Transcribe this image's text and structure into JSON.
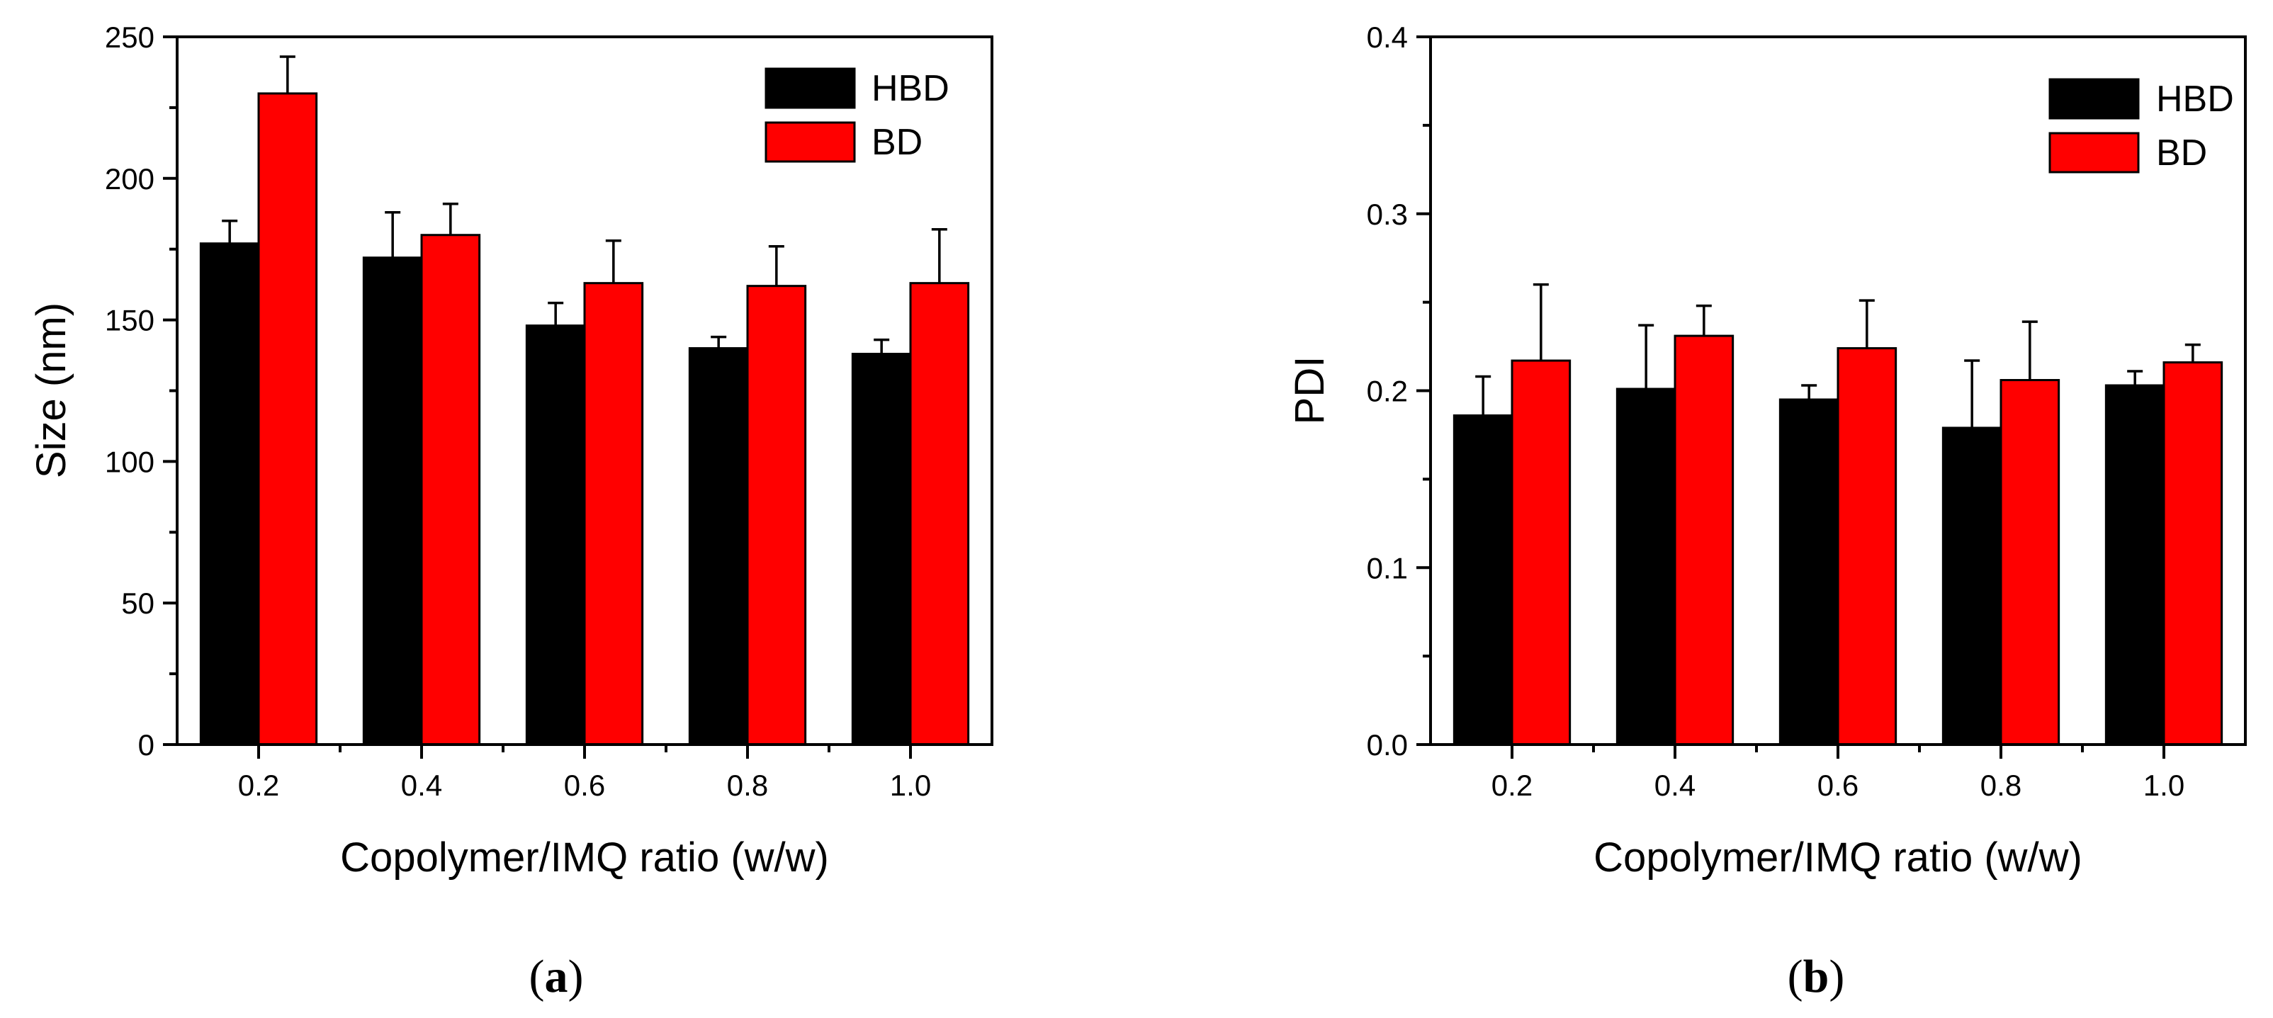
{
  "chart_data": [
    {
      "type": "bar",
      "panel_label": "a",
      "title": "",
      "xlabel": "Copolymer/IMQ ratio (w/w)",
      "ylabel": "Size (nm)",
      "categories": [
        "0.2",
        "0.4",
        "0.6",
        "0.8",
        "1.0"
      ],
      "ylim": [
        0,
        250
      ],
      "yticks": [
        "0",
        "50",
        "100",
        "150",
        "200",
        "250"
      ],
      "legend_position": "top-right",
      "series": [
        {
          "name": "HBD",
          "color": "#000000",
          "values": [
            177,
            172,
            148,
            140,
            138
          ],
          "errors": [
            8,
            16,
            8,
            4,
            5
          ]
        },
        {
          "name": "BD",
          "color": "#ff0000",
          "values": [
            230,
            180,
            163,
            162,
            163
          ],
          "errors": [
            13,
            11,
            15,
            14,
            19
          ]
        }
      ]
    },
    {
      "type": "bar",
      "panel_label": "b",
      "title": "",
      "xlabel": "Copolymer/IMQ ratio (w/w)",
      "ylabel": "PDI",
      "categories": [
        "0.2",
        "0.4",
        "0.6",
        "0.8",
        "1.0"
      ],
      "ylim": [
        0,
        0.4
      ],
      "yticks": [
        "0.0",
        "0.1",
        "0.2",
        "0.3",
        "0.4"
      ],
      "legend_position": "top-right",
      "series": [
        {
          "name": "HBD",
          "color": "#000000",
          "values": [
            0.186,
            0.201,
            0.195,
            0.179,
            0.203
          ],
          "errors": [
            0.022,
            0.036,
            0.008,
            0.038,
            0.008
          ]
        },
        {
          "name": "BD",
          "color": "#ff0000",
          "values": [
            0.217,
            0.231,
            0.224,
            0.206,
            0.216
          ],
          "errors": [
            0.043,
            0.017,
            0.027,
            0.033,
            0.01
          ]
        }
      ]
    }
  ]
}
